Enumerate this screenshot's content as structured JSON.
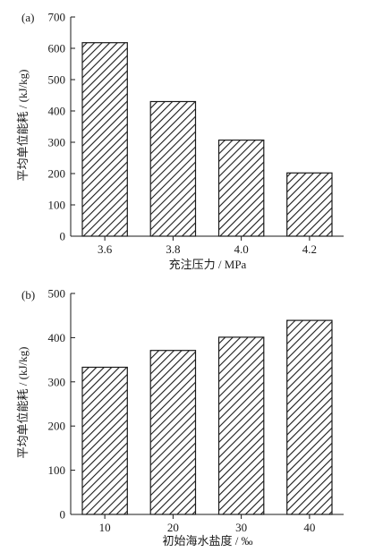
{
  "chart_data": [
    {
      "type": "bar",
      "panel_label": "(a)",
      "categories": [
        "3.6",
        "3.8",
        "4.0",
        "4.2"
      ],
      "values": [
        618,
        430,
        307,
        202
      ],
      "xlabel": "充注压力 / MPa",
      "ylabel": "平均单位能耗 / (kJ/kg)",
      "ylim": [
        0,
        700
      ],
      "yticks": [
        "0",
        "100",
        "200",
        "300",
        "400",
        "500",
        "600",
        "700"
      ],
      "bar_fill": "diagonal-hatch",
      "bar_color": "#1a1a1a",
      "grid": false,
      "legend": "none"
    },
    {
      "type": "bar",
      "panel_label": "(b)",
      "categories": [
        "10",
        "20",
        "30",
        "40"
      ],
      "values": [
        333,
        371,
        401,
        439
      ],
      "xlabel": "初始海水盐度 / ‰",
      "ylabel": "平均单位能耗 / (kJ/kg)",
      "ylim": [
        0,
        500
      ],
      "yticks": [
        "0",
        "100",
        "200",
        "300",
        "400",
        "500"
      ],
      "bar_fill": "diagonal-hatch",
      "bar_color": "#1a1a1a",
      "grid": false,
      "legend": "none"
    }
  ]
}
